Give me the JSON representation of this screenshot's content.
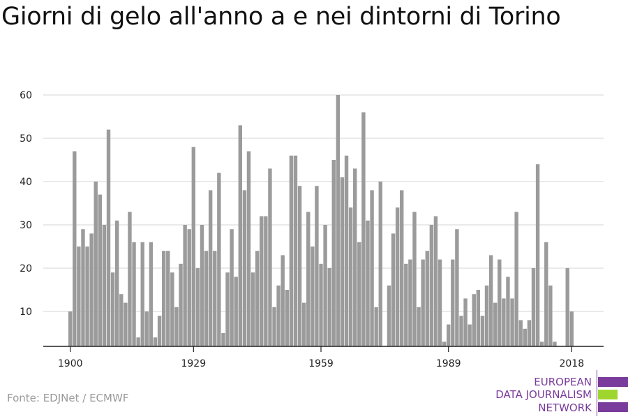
{
  "title": "Giorni di gelo all'anno a e nei dintorni di Torino",
  "source": "Fonte: EDJNet / ECMWF",
  "logo": {
    "line1": "EUROPEAN",
    "line2": "DATA JOURNALISM",
    "line3": "NETWORK"
  },
  "colors": {
    "bar": "#9b9b9b",
    "grid": "#dddddd",
    "axis": "#222222",
    "text": "#222222",
    "logo_purple": "#7a3c9c",
    "logo_green": "#9fd62d"
  },
  "chart_data": {
    "type": "bar",
    "title": "Giorni di gelo all'anno a e nei dintorni di Torino",
    "xlabel": "",
    "ylabel": "",
    "ylim": [
      2,
      62
    ],
    "yticks": [
      10,
      20,
      30,
      40,
      50,
      60
    ],
    "xticks": [
      1900,
      1929,
      1959,
      1989,
      2018
    ],
    "grid": true,
    "categories": [
      1900,
      1901,
      1902,
      1903,
      1904,
      1905,
      1906,
      1907,
      1908,
      1909,
      1910,
      1911,
      1912,
      1913,
      1914,
      1915,
      1916,
      1917,
      1918,
      1919,
      1920,
      1921,
      1922,
      1923,
      1924,
      1925,
      1926,
      1927,
      1928,
      1929,
      1930,
      1931,
      1932,
      1933,
      1934,
      1935,
      1936,
      1937,
      1938,
      1939,
      1940,
      1941,
      1942,
      1943,
      1944,
      1945,
      1946,
      1947,
      1948,
      1949,
      1950,
      1951,
      1952,
      1953,
      1954,
      1955,
      1956,
      1957,
      1958,
      1959,
      1960,
      1961,
      1962,
      1963,
      1964,
      1965,
      1966,
      1967,
      1968,
      1969,
      1970,
      1971,
      1972,
      1973,
      1974,
      1975,
      1976,
      1977,
      1978,
      1979,
      1980,
      1981,
      1982,
      1983,
      1984,
      1985,
      1986,
      1987,
      1988,
      1989,
      1990,
      1991,
      1992,
      1993,
      1994,
      1995,
      1996,
      1997,
      1998,
      1999,
      2000,
      2001,
      2002,
      2003,
      2004,
      2005,
      2006,
      2007,
      2008,
      2009,
      2010,
      2011,
      2012,
      2013,
      2014,
      2015,
      2016,
      2017,
      2018
    ],
    "values": [
      10,
      47,
      25,
      29,
      25,
      28,
      40,
      37,
      30,
      52,
      19,
      31,
      14,
      12,
      33,
      26,
      4,
      26,
      10,
      26,
      4,
      9,
      24,
      24,
      19,
      11,
      21,
      30,
      29,
      48,
      20,
      30,
      24,
      38,
      24,
      42,
      5,
      19,
      29,
      18,
      53,
      38,
      47,
      19,
      24,
      32,
      32,
      43,
      11,
      16,
      23,
      15,
      46,
      46,
      39,
      12,
      33,
      25,
      39,
      21,
      30,
      20,
      45,
      60,
      41,
      46,
      34,
      43,
      26,
      56,
      31,
      38,
      11,
      40,
      2,
      16,
      28,
      34,
      38,
      21,
      22,
      33,
      11,
      22,
      24,
      30,
      32,
      22,
      3,
      7,
      22,
      29,
      9,
      13,
      7,
      14,
      15,
      9,
      16,
      23,
      12,
      22,
      13,
      18,
      13,
      33,
      8,
      6,
      8,
      20,
      44,
      3,
      26,
      16,
      3,
      1,
      2,
      20,
      10
    ]
  }
}
